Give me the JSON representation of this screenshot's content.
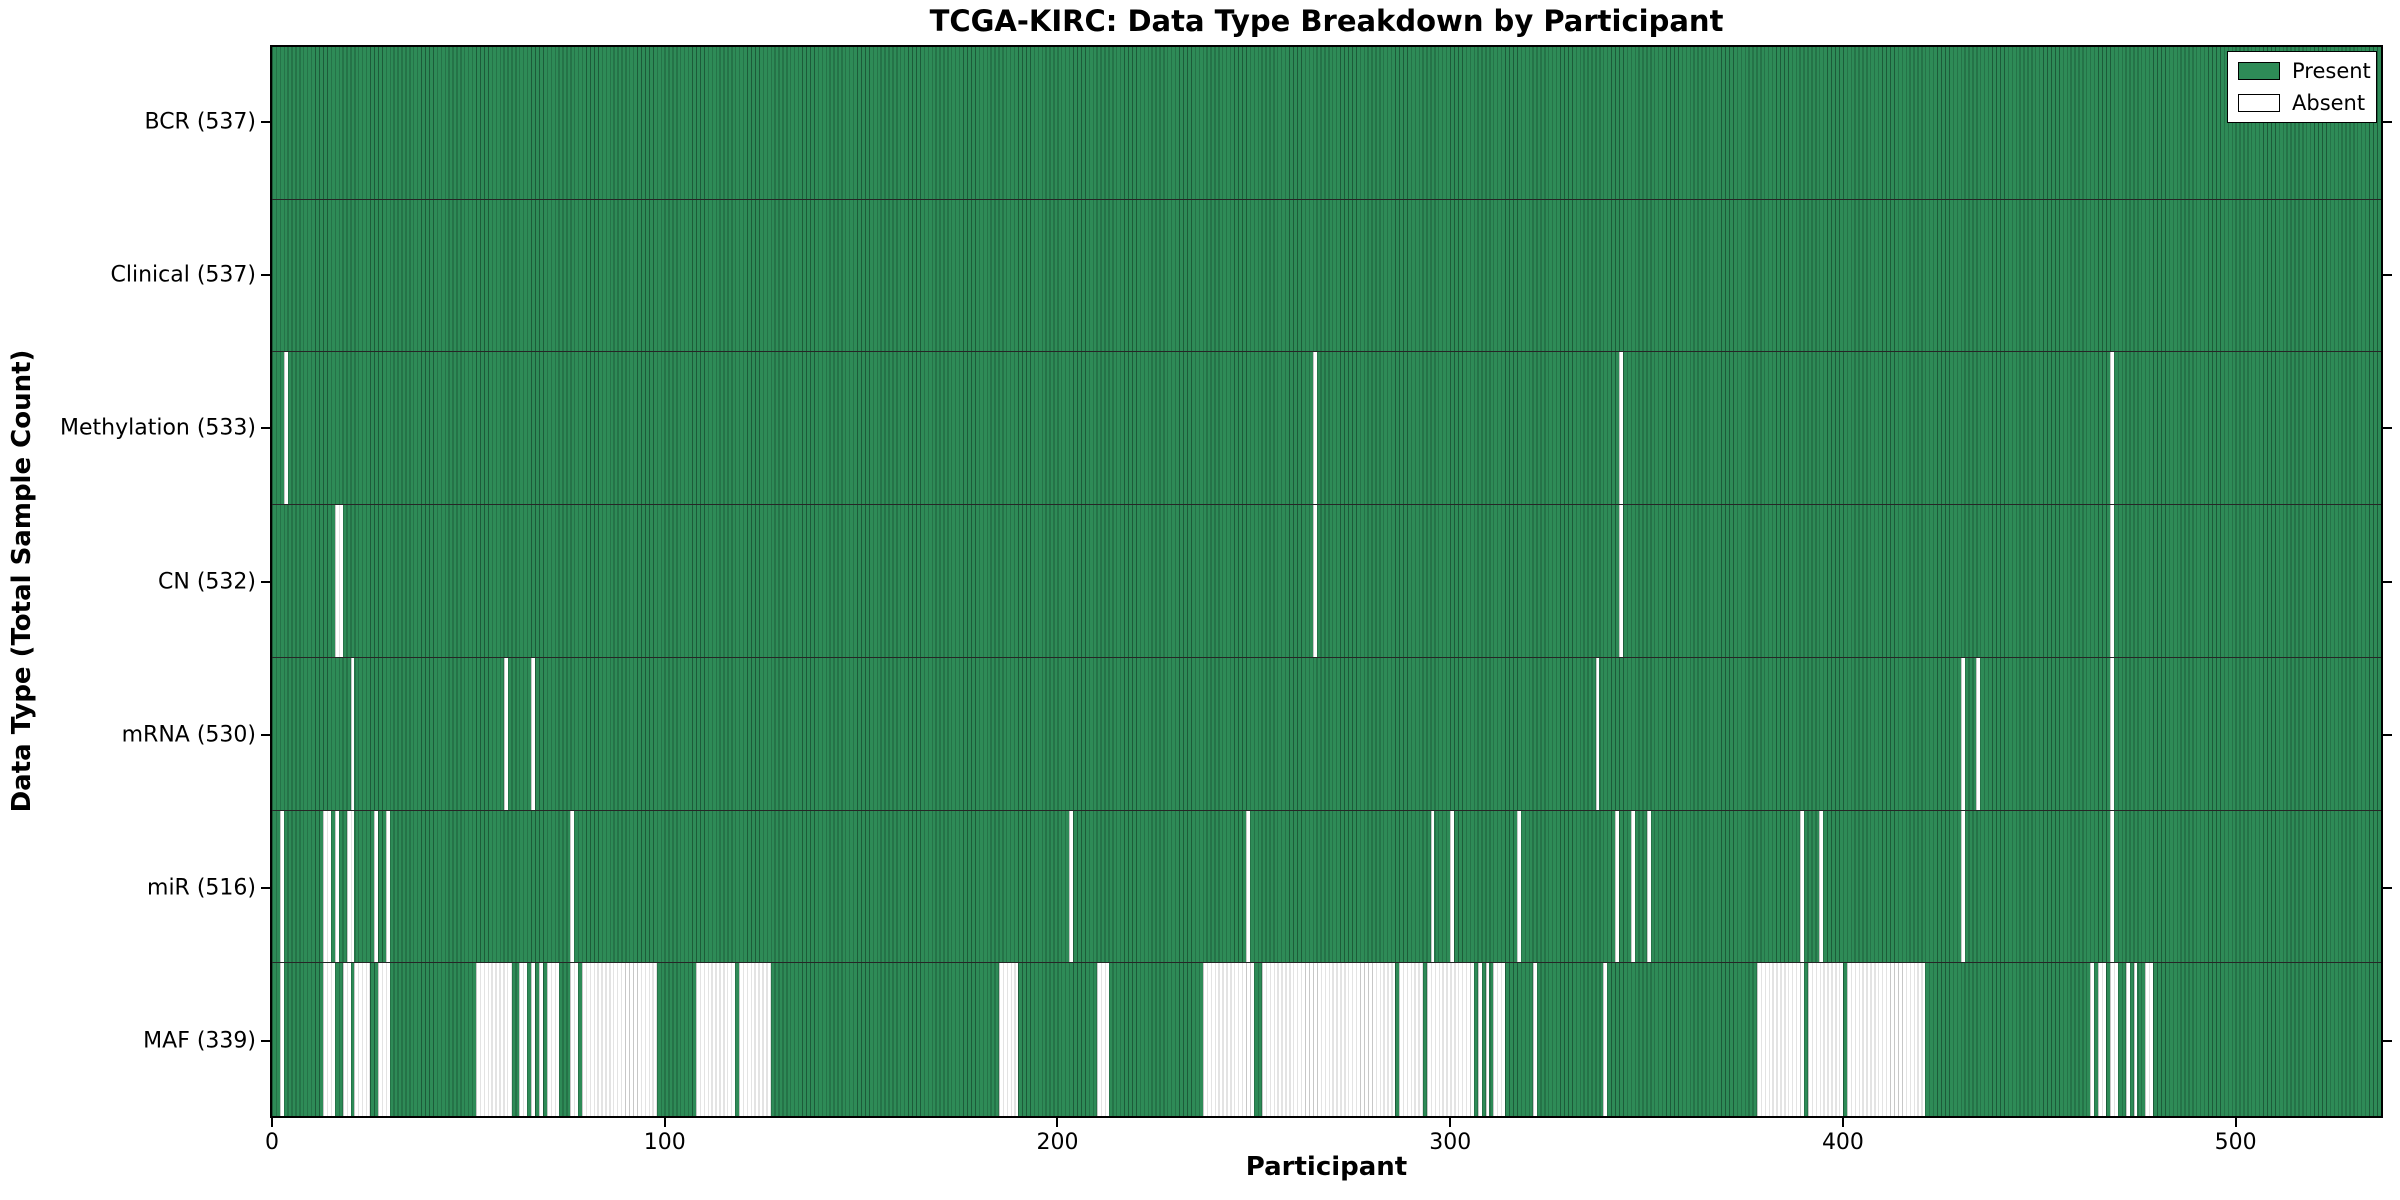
{
  "title": "TCGA-KIRC: Data Type Breakdown by Participant",
  "chart_data": {
    "type": "heatmap",
    "title": "TCGA-KIRC: Data Type Breakdown by Participant",
    "xlabel": "Participant",
    "ylabel": "Data Type (Total Sample Count)",
    "x_ticks": [
      0,
      100,
      200,
      300,
      400,
      500
    ],
    "x_range": [
      0,
      537
    ],
    "n_participants": 537,
    "grid": false,
    "legend_position": "upper right",
    "legend": [
      {
        "label": "Present",
        "color": "#2e8b57"
      },
      {
        "label": "Absent",
        "color": "#ffffff"
      }
    ],
    "colors": {
      "present": "#2e8b57",
      "absent": "#ffffff",
      "bar_edge": "rgba(13,52,32,0.55)",
      "absent_edge": "rgba(0,0,0,0.22)",
      "spine": "#000000"
    },
    "rows": [
      {
        "label": "BCR (537)",
        "data_type": "BCR",
        "present_count": 537,
        "absent_count": 0,
        "absent_ranges": []
      },
      {
        "label": "Clinical (537)",
        "data_type": "Clinical",
        "present_count": 537,
        "absent_count": 0,
        "absent_ranges": []
      },
      {
        "label": "Methylation (533)",
        "data_type": "Methylation",
        "present_count": 533,
        "absent_count": 4,
        "absent_ranges": [
          [
            3,
            3
          ],
          [
            265,
            265
          ],
          [
            343,
            343
          ],
          [
            468,
            468
          ]
        ]
      },
      {
        "label": "CN (532)",
        "data_type": "CN",
        "present_count": 532,
        "absent_count": 5,
        "absent_ranges": [
          [
            16,
            17
          ],
          [
            265,
            265
          ],
          [
            343,
            343
          ],
          [
            468,
            468
          ]
        ]
      },
      {
        "label": "mRNA (530)",
        "data_type": "mRNA",
        "present_count": 530,
        "absent_count": 7,
        "absent_ranges": [
          [
            20,
            20
          ],
          [
            59,
            59
          ],
          [
            66,
            66
          ],
          [
            337,
            337
          ],
          [
            430,
            430
          ],
          [
            434,
            434
          ],
          [
            468,
            468
          ]
        ]
      },
      {
        "label": "miR (516)",
        "data_type": "miR",
        "present_count": 516,
        "absent_count": 21,
        "absent_ranges": [
          [
            2,
            2
          ],
          [
            13,
            14
          ],
          [
            16,
            16
          ],
          [
            19,
            20
          ],
          [
            26,
            26
          ],
          [
            29,
            29
          ],
          [
            76,
            76
          ],
          [
            203,
            203
          ],
          [
            248,
            248
          ],
          [
            295,
            295
          ],
          [
            300,
            300
          ],
          [
            317,
            317
          ],
          [
            342,
            342
          ],
          [
            346,
            346
          ],
          [
            350,
            350
          ],
          [
            389,
            389
          ],
          [
            394,
            394
          ],
          [
            430,
            430
          ],
          [
            468,
            468
          ]
        ]
      },
      {
        "label": "MAF (339)",
        "data_type": "MAF",
        "present_count": 339,
        "absent_count": 198,
        "absent_ranges": [
          [
            2,
            2
          ],
          [
            13,
            15
          ],
          [
            18,
            19
          ],
          [
            21,
            24
          ],
          [
            27,
            29
          ],
          [
            52,
            60
          ],
          [
            63,
            64
          ],
          [
            66,
            66
          ],
          [
            68,
            68
          ],
          [
            70,
            72
          ],
          [
            76,
            77
          ],
          [
            79,
            97
          ],
          [
            108,
            117
          ],
          [
            119,
            126
          ],
          [
            185,
            189
          ],
          [
            210,
            212
          ],
          [
            237,
            249
          ],
          [
            252,
            285
          ],
          [
            287,
            292
          ],
          [
            294,
            305
          ],
          [
            307,
            307
          ],
          [
            309,
            309
          ],
          [
            311,
            313
          ],
          [
            321,
            321
          ],
          [
            339,
            339
          ],
          [
            378,
            389
          ],
          [
            391,
            399
          ],
          [
            401,
            420
          ],
          [
            463,
            463
          ],
          [
            465,
            466
          ],
          [
            468,
            469
          ],
          [
            472,
            472
          ],
          [
            474,
            474
          ],
          [
            477,
            478
          ]
        ]
      }
    ]
  }
}
